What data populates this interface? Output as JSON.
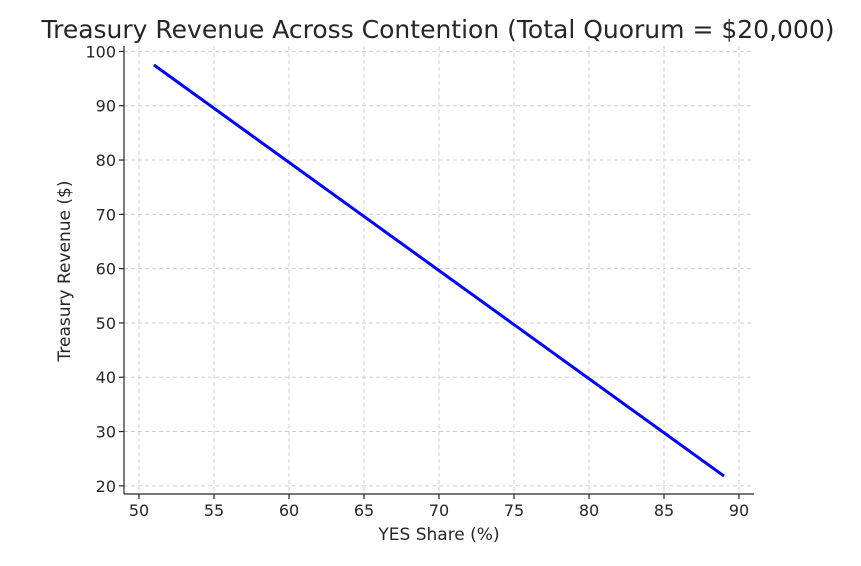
{
  "chart_data": {
    "type": "line",
    "title": "Treasury Revenue Across Contention (Total Quorum = $20,000)",
    "xlabel": "YES Share (%)",
    "ylabel": "Treasury Revenue ($)",
    "xlim": [
      49,
      91
    ],
    "ylim": [
      18.5,
      101
    ],
    "x_ticks": [
      50,
      55,
      60,
      65,
      70,
      75,
      80,
      85,
      90
    ],
    "y_ticks": [
      20,
      30,
      40,
      50,
      60,
      70,
      80,
      90,
      100
    ],
    "grid": true,
    "series": [
      {
        "color": "#0000ff",
        "x": [
          51,
          89
        ],
        "y": [
          97.5,
          21.8
        ]
      }
    ]
  }
}
